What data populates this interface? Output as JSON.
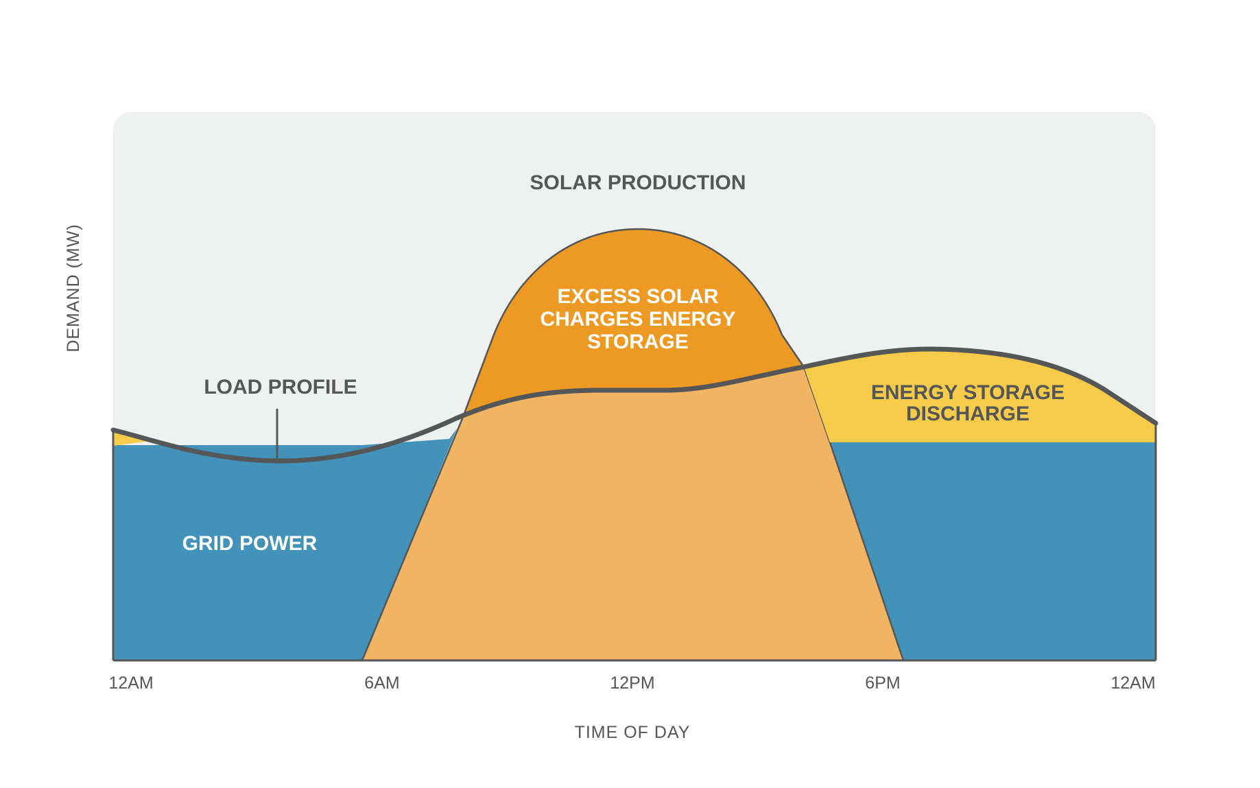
{
  "chart_data": {
    "type": "area",
    "xlabel": "TIME OF DAY",
    "ylabel": "DEMAND (MW)",
    "x_ticks": [
      "12AM",
      "6AM",
      "12PM",
      "6PM",
      "12AM"
    ],
    "x_range_hours": [
      0,
      24
    ],
    "y_range_relative": [
      0,
      1
    ],
    "series": [
      {
        "name": "LOAD PROFILE",
        "kind": "line",
        "x": [
          0,
          1.5,
          3.75,
          6,
          8,
          10,
          12,
          14,
          16,
          19,
          22.5,
          24
        ],
        "y": [
          0.424,
          0.383,
          0.365,
          0.39,
          0.492,
          0.492,
          0.492,
          0.492,
          0.548,
          0.565,
          0.542,
          0.438
        ]
      },
      {
        "name": "SOLAR PRODUCTION",
        "kind": "area",
        "x": [
          5.75,
          8.5,
          12,
          15.5,
          18.25
        ],
        "y": [
          0,
          0.59,
          0.78,
          0.59,
          0
        ]
      },
      {
        "name": "GRID POWER",
        "kind": "area",
        "x": [
          0,
          5.75,
          7.9,
          16.5,
          18.25,
          24
        ],
        "y": [
          0.394,
          0.394,
          0.445,
          0.401,
          0.401,
          0.401
        ]
      }
    ],
    "annotations": [
      "SOLAR PRODUCTION",
      "LOAD PROFILE",
      "EXCESS SOLAR",
      "CHARGES ENERGY",
      "STORAGE",
      "ENERGY STORAGE",
      "DISCHARGE",
      "GRID POWER"
    ],
    "colors": {
      "background_panel": "#EFF0F0",
      "grid_power": "#4292B9",
      "solar_production": "#F0B462",
      "excess_solar": "#EC9A24",
      "energy_storage_discharge": "#F6CB4A",
      "load_profile_line": "#545657"
    }
  }
}
